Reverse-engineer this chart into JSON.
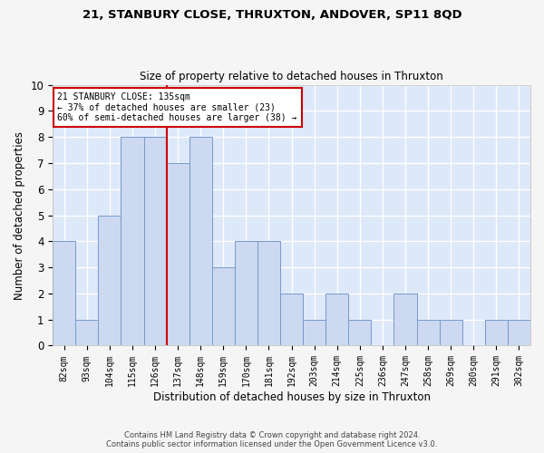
{
  "title1": "21, STANBURY CLOSE, THRUXTON, ANDOVER, SP11 8QD",
  "title2": "Size of property relative to detached houses in Thruxton",
  "xlabel": "Distribution of detached houses by size in Thruxton",
  "ylabel": "Number of detached properties",
  "categories": [
    "82sqm",
    "93sqm",
    "104sqm",
    "115sqm",
    "126sqm",
    "137sqm",
    "148sqm",
    "159sqm",
    "170sqm",
    "181sqm",
    "192sqm",
    "203sqm",
    "214sqm",
    "225sqm",
    "236sqm",
    "247sqm",
    "258sqm",
    "269sqm",
    "280sqm",
    "291sqm",
    "302sqm"
  ],
  "values": [
    4,
    1,
    5,
    8,
    8,
    7,
    8,
    3,
    4,
    4,
    2,
    1,
    2,
    1,
    0,
    2,
    1,
    1,
    0,
    1,
    1
  ],
  "bar_color": "#ccd9f0",
  "bar_edge_color": "#7799cc",
  "subject_label": "21 STANBURY CLOSE: 135sqm",
  "annotation_line1": "← 37% of detached houses are smaller (23)",
  "annotation_line2": "60% of semi-detached houses are larger (38) →",
  "annotation_box_color": "#ffffff",
  "annotation_box_edge": "#cc0000",
  "subject_line_color": "#cc0000",
  "ylim": [
    0,
    10
  ],
  "yticks": [
    0,
    1,
    2,
    3,
    4,
    5,
    6,
    7,
    8,
    9,
    10
  ],
  "bg_color": "#dde8f8",
  "grid_color": "#ffffff",
  "fig_bg_color": "#f5f5f5",
  "footer1": "Contains HM Land Registry data © Crown copyright and database right 2024.",
  "footer2": "Contains public sector information licensed under the Open Government Licence v3.0."
}
